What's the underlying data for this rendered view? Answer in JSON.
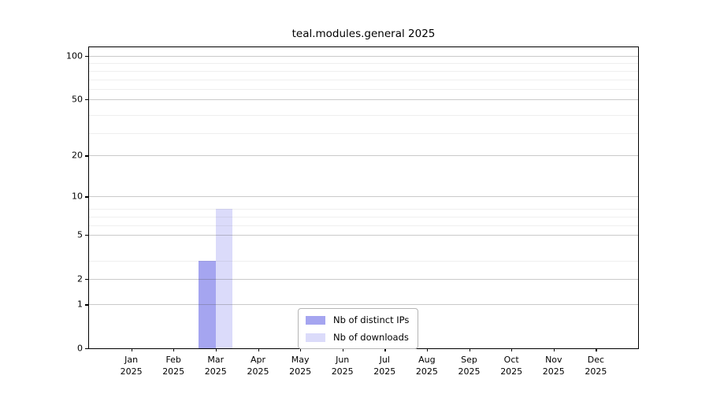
{
  "chart_data": {
    "type": "bar",
    "title": "teal.modules.general 2025",
    "categories": [
      "Jan",
      "Feb",
      "Mar",
      "Apr",
      "May",
      "Jun",
      "Jul",
      "Aug",
      "Sep",
      "Oct",
      "Nov",
      "Dec"
    ],
    "year_label": "2025",
    "series": [
      {
        "name": "Nb of distinct IPs",
        "color": "#a5a5f0",
        "values": [
          0,
          0,
          3,
          0,
          0,
          0,
          0,
          0,
          0,
          0,
          0,
          0
        ]
      },
      {
        "name": "Nb of downloads",
        "color": "#dbdbfa",
        "values": [
          0,
          0,
          8,
          0,
          0,
          0,
          0,
          0,
          0,
          0,
          0,
          0
        ]
      }
    ],
    "scale": "log1p",
    "ylim": [
      0,
      115
    ],
    "y_major_ticks": [
      0,
      1,
      2,
      5,
      10,
      20,
      50,
      100
    ],
    "y_minor_lines": [
      3,
      6,
      7,
      8,
      29,
      39,
      59,
      69,
      79,
      89
    ],
    "grid": true,
    "legend_position": "lower center",
    "colors": {
      "axis": "#000000",
      "major_grid": "#cccccc",
      "minor_grid": "#ededed",
      "legend_border": "#b5b5b5",
      "background": "#ffffff"
    }
  }
}
